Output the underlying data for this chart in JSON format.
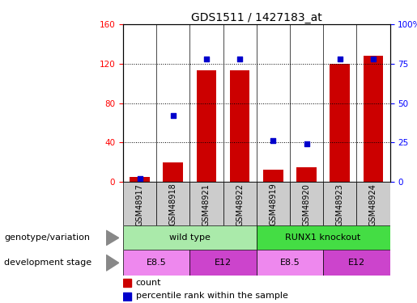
{
  "title": "GDS1511 / 1427183_at",
  "samples": [
    "GSM48917",
    "GSM48918",
    "GSM48921",
    "GSM48922",
    "GSM48919",
    "GSM48920",
    "GSM48923",
    "GSM48924"
  ],
  "counts": [
    5,
    20,
    113,
    113,
    12,
    15,
    120,
    128
  ],
  "percentiles": [
    2,
    42,
    78,
    78,
    26,
    24,
    78,
    78
  ],
  "left_ylim": [
    0,
    160
  ],
  "right_ylim": [
    0,
    100
  ],
  "left_yticks": [
    0,
    40,
    80,
    120,
    160
  ],
  "right_yticks": [
    0,
    25,
    50,
    75,
    100
  ],
  "right_yticklabels": [
    "0",
    "25",
    "50",
    "75",
    "100%"
  ],
  "bar_color": "#cc0000",
  "dot_color": "#0000cc",
  "genotype_groups": [
    {
      "label": "wild type",
      "start": 0,
      "end": 4,
      "color": "#aaeaaa"
    },
    {
      "label": "RUNX1 knockout",
      "start": 4,
      "end": 8,
      "color": "#44dd44"
    }
  ],
  "dev_stage_groups": [
    {
      "label": "E8.5",
      "start": 0,
      "end": 2,
      "color": "#ee88ee"
    },
    {
      "label": "E12",
      "start": 2,
      "end": 4,
      "color": "#cc44cc"
    },
    {
      "label": "E8.5",
      "start": 4,
      "end": 6,
      "color": "#ee88ee"
    },
    {
      "label": "E12",
      "start": 6,
      "end": 8,
      "color": "#cc44cc"
    }
  ],
  "genotype_label": "genotype/variation",
  "devstage_label": "development stage",
  "legend_count_label": "count",
  "legend_pct_label": "percentile rank within the sample",
  "tick_label_bg": "#cccccc",
  "plot_bg_color": "#ffffff",
  "figsize": [
    5.15,
    3.75
  ],
  "dpi": 100
}
